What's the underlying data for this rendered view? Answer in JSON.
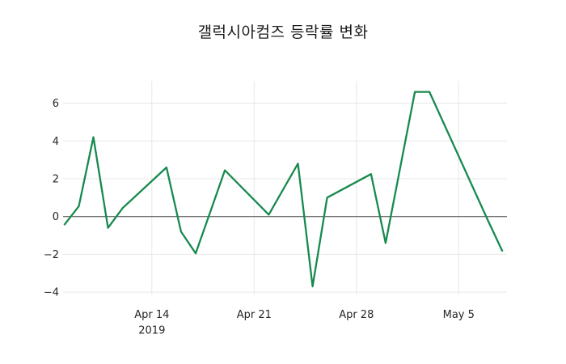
{
  "title": "갤럭시아컴즈 등락률 변화",
  "colors": {
    "line": "#178a4e",
    "grid": "#e7e7e7",
    "zero_line": "#3f3f3f",
    "text": "#262626",
    "title_text": "#1a1a1a",
    "background": "#ffffff"
  },
  "chart_data": {
    "type": "line",
    "title": "갤럭시아컴즈 등락률 변화",
    "xlabel": "",
    "ylabel": "",
    "grid": true,
    "legend": false,
    "x_unit": "date",
    "ylim": [
      -4.15,
      7.18
    ],
    "xlim": [
      "2019-04-07",
      "2019-05-08"
    ],
    "yticks": [
      {
        "value": 6,
        "label": "6"
      },
      {
        "value": 4,
        "label": "4"
      },
      {
        "value": 2,
        "label": "2"
      },
      {
        "value": 0,
        "label": "0"
      },
      {
        "value": -2,
        "label": "−2"
      },
      {
        "value": -4,
        "label": "−4"
      }
    ],
    "xticks": [
      {
        "date": "2019-04-14",
        "label": "Apr 14",
        "sublabel": "2019"
      },
      {
        "date": "2019-04-21",
        "label": "Apr 21",
        "sublabel": ""
      },
      {
        "date": "2019-04-28",
        "label": "Apr 28",
        "sublabel": ""
      },
      {
        "date": "2019-05-05",
        "label": "May 5",
        "sublabel": ""
      }
    ],
    "series": [
      {
        "color": "#178a4e",
        "points": [
          {
            "date": "2019-04-08",
            "value": -0.45
          },
          {
            "date": "2019-04-09",
            "value": 0.55
          },
          {
            "date": "2019-04-10",
            "value": 4.2
          },
          {
            "date": "2019-04-11",
            "value": -0.6
          },
          {
            "date": "2019-04-12",
            "value": 0.45
          },
          {
            "date": "2019-04-15",
            "value": 2.6
          },
          {
            "date": "2019-04-16",
            "value": -0.8
          },
          {
            "date": "2019-04-17",
            "value": -1.95
          },
          {
            "date": "2019-04-18",
            "value": 0.25
          },
          {
            "date": "2019-04-19",
            "value": 2.45
          },
          {
            "date": "2019-04-22",
            "value": 0.1
          },
          {
            "date": "2019-04-23",
            "value": 1.45
          },
          {
            "date": "2019-04-24",
            "value": 2.8
          },
          {
            "date": "2019-04-25",
            "value": -3.7
          },
          {
            "date": "2019-04-26",
            "value": 1.0
          },
          {
            "date": "2019-04-29",
            "value": 2.25
          },
          {
            "date": "2019-04-30",
            "value": -1.4
          },
          {
            "date": "2019-05-02",
            "value": 6.6
          },
          {
            "date": "2019-05-03",
            "value": 6.6
          },
          {
            "date": "2019-05-07",
            "value": -0.2
          },
          {
            "date": "2019-05-08",
            "value": -1.85
          }
        ]
      }
    ]
  }
}
